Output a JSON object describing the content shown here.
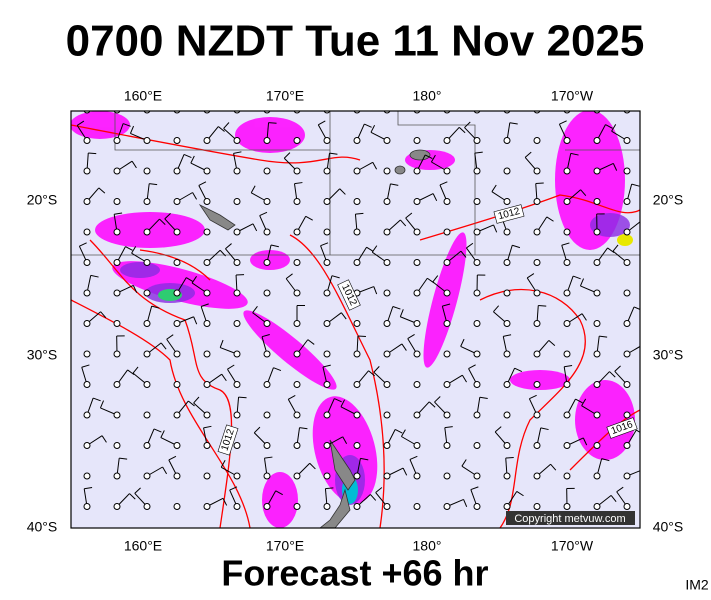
{
  "title": "0700 NZDT Tue 11 Nov 2025",
  "map": {
    "lon_labels": [
      "160°E",
      "170°E",
      "180°",
      "170°W"
    ],
    "lat_labels": [
      "20°S",
      "30°S",
      "40°S"
    ],
    "isobar_labels": [
      "1012",
      "1012",
      "1012",
      "1016"
    ],
    "copyright": "Copyright metvuw.com"
  },
  "footer": "Forecast +66 hr",
  "image_id": "IM2"
}
